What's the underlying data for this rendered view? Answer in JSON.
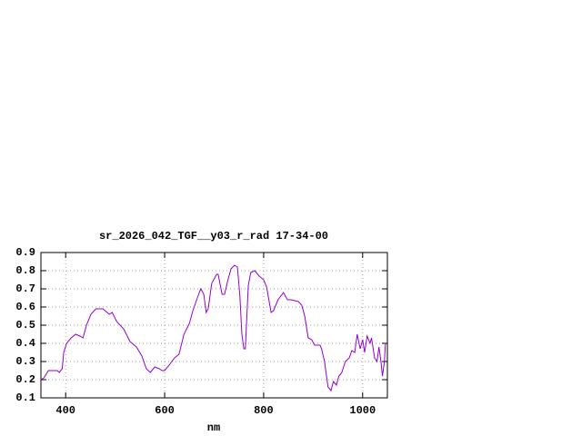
{
  "chart_data": {
    "type": "line",
    "title": "sr_2026_042_TGF__y03_r_rad 17-34-00",
    "x_label": "nm",
    "x": [
      350,
      356,
      365,
      374,
      383,
      387,
      393,
      396,
      402,
      411,
      420,
      429,
      435,
      442,
      451,
      461,
      475,
      484,
      488,
      494,
      503,
      517,
      530,
      543,
      554,
      563,
      571,
      580,
      589,
      595,
      600,
      609,
      620,
      629,
      639,
      650,
      657,
      666,
      673,
      679,
      684,
      688,
      695,
      705,
      708,
      716,
      721,
      727,
      734,
      741,
      747,
      752,
      756,
      760,
      763,
      769,
      774,
      782,
      791,
      800,
      806,
      815,
      820,
      829,
      840,
      848,
      855,
      870,
      877,
      883,
      890,
      897,
      903,
      914,
      917,
      923,
      930,
      936,
      941,
      947,
      952,
      958,
      965,
      973,
      978,
      984,
      989,
      995,
      1000,
      1004,
      1009,
      1015,
      1018,
      1024,
      1029,
      1033,
      1037,
      1040,
      1044,
      1046
    ],
    "series": [
      {
        "name": "sr_2026_042_TGF__y03_r_rad",
        "color": "#9400d3",
        "values": [
          0.2,
          0.21,
          0.25,
          0.25,
          0.25,
          0.24,
          0.26,
          0.35,
          0.4,
          0.43,
          0.45,
          0.44,
          0.43,
          0.5,
          0.56,
          0.59,
          0.59,
          0.57,
          0.56,
          0.57,
          0.52,
          0.48,
          0.41,
          0.38,
          0.33,
          0.26,
          0.24,
          0.27,
          0.26,
          0.25,
          0.25,
          0.28,
          0.32,
          0.34,
          0.45,
          0.51,
          0.58,
          0.65,
          0.7,
          0.67,
          0.57,
          0.59,
          0.73,
          0.78,
          0.78,
          0.67,
          0.67,
          0.74,
          0.81,
          0.83,
          0.82,
          0.66,
          0.45,
          0.37,
          0.37,
          0.72,
          0.79,
          0.8,
          0.77,
          0.75,
          0.71,
          0.57,
          0.58,
          0.64,
          0.68,
          0.64,
          0.64,
          0.63,
          0.61,
          0.55,
          0.43,
          0.42,
          0.39,
          0.39,
          0.37,
          0.3,
          0.16,
          0.14,
          0.19,
          0.17,
          0.22,
          0.24,
          0.3,
          0.32,
          0.36,
          0.35,
          0.45,
          0.37,
          0.42,
          0.35,
          0.44,
          0.4,
          0.43,
          0.32,
          0.3,
          0.38,
          0.3,
          0.22,
          0.3,
          0.4
        ]
      }
    ],
    "xlim": [
      350,
      1050
    ],
    "xticks": [
      400,
      600,
      800,
      1000
    ],
    "ylim": [
      0.1,
      0.9
    ],
    "yticks": [
      0.1,
      0.2,
      0.3,
      0.4,
      0.5,
      0.6,
      0.7,
      0.8,
      0.9
    ],
    "grid": true
  }
}
